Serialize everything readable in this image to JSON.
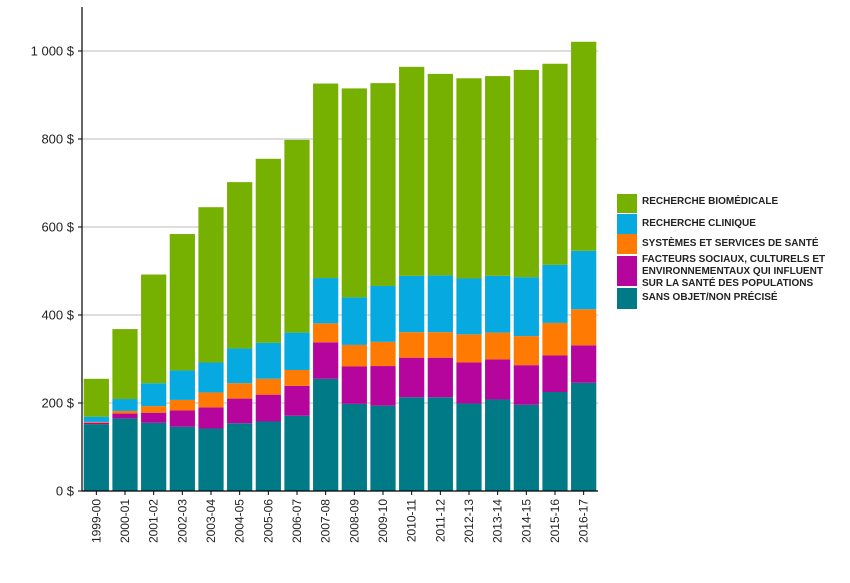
{
  "chart_data": {
    "type": "bar",
    "stacked": true,
    "categories": [
      "1999-00",
      "2000-01",
      "2001-02",
      "2002-03",
      "2003-04",
      "2004-05",
      "2005-06",
      "2006-07",
      "2007-08",
      "2008-09",
      "2009-10",
      "2010-11",
      "2011-12",
      "2012-13",
      "2013-14",
      "2014-15",
      "2015-16",
      "2016-17"
    ],
    "series": [
      {
        "name": "SANS OBJET/NON PRÉCISÉ",
        "color": "#017a87",
        "values": [
          152,
          165,
          155,
          146,
          142,
          154,
          158,
          171,
          255,
          198,
          194,
          213,
          213,
          199,
          208,
          196,
          225,
          246
        ]
      },
      {
        "name": "FACTEURS SOCIAUX, CULTURELS ET ENVIRONNEMENTAUX QUI INFLUENT SUR LA SANTÉ DES POPULATIONS",
        "color": "#b5059c",
        "values": [
          3,
          11,
          23,
          37,
          48,
          56,
          61,
          68,
          83,
          85,
          90,
          90,
          90,
          93,
          91,
          90,
          83,
          85
        ]
      },
      {
        "name": "SYSTÈMES ET SERVICES DE SANTÉ",
        "color": "#fe7a02",
        "values": [
          2,
          6,
          15,
          24,
          34,
          35,
          36,
          36,
          43,
          49,
          55,
          58,
          58,
          64,
          61,
          66,
          74,
          82
        ]
      },
      {
        "name": "RECHERCHE CLINIQUE",
        "color": "#07a9e1",
        "values": [
          12,
          27,
          52,
          67,
          68,
          79,
          82,
          85,
          103,
          108,
          127,
          128,
          129,
          127,
          129,
          134,
          132,
          133
        ]
      },
      {
        "name": "RECHERCHE BIOMÉDICALE",
        "color": "#76b102",
        "values": [
          86,
          159,
          247,
          310,
          353,
          378,
          418,
          438,
          442,
          475,
          461,
          475,
          458,
          455,
          454,
          471,
          457,
          475
        ]
      }
    ],
    "legend_order": [
      "RECHERCHE BIOMÉDICALE",
      "RECHERCHE CLINIQUE",
      "SYSTÈMES ET SERVICES DE SANTÉ",
      "FACTEURS SOCIAUX, CULTURELS ET ENVIRONNEMENTAUX QUI INFLUENT SUR LA SANTÉ DES POPULATIONS",
      "SANS OBJET/NON PRÉCISÉ"
    ],
    "legend_lines": [
      [
        "RECHERCHE BIOMÉDICALE"
      ],
      [
        "RECHERCHE CLINIQUE"
      ],
      [
        "SYSTÈMES ET SERVICES DE SANTÉ"
      ],
      [
        "FACTEURS SOCIAUX, CULTURELS ET",
        "ENVIRONNEMENTAUX QUI INFLUENT",
        "SUR LA SANTÉ DES POPULATIONS"
      ],
      [
        "SANS OBJET/NON PRÉCISÉ"
      ]
    ],
    "y_ticks": [
      0,
      200,
      400,
      600,
      800,
      1000
    ],
    "y_tick_labels": [
      "0 $",
      "200 $",
      "400 $",
      "600 $",
      "800 $",
      "1 000 $"
    ],
    "ylim": [
      0,
      1100
    ],
    "grid": true,
    "legend_position": "right",
    "title": "",
    "xlabel": "",
    "ylabel": ""
  }
}
